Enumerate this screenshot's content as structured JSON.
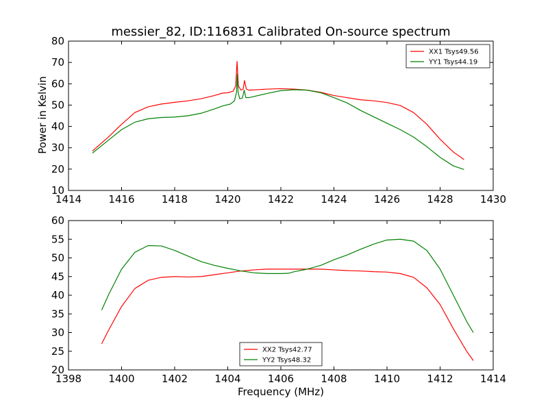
{
  "figure": {
    "title": "messier_82, ID:116831 Calibrated On-source spectrum",
    "ylabel": "Power in Kelvin",
    "xlabel": "Frequency (MHz)"
  },
  "chart_data": [
    {
      "type": "line",
      "title": "messier_82, ID:116831 Calibrated On-source spectrum",
      "xlabel": "",
      "ylabel": "Power in Kelvin",
      "xlim": [
        1414,
        1430
      ],
      "ylim": [
        10,
        80
      ],
      "xticks": [
        "1414",
        "1416",
        "1418",
        "1420",
        "1422",
        "1424",
        "1426",
        "1428",
        "1430"
      ],
      "yticks": [
        "10",
        "20",
        "30",
        "40",
        "50",
        "60",
        "70",
        "80"
      ],
      "grid": false,
      "legend_position": "top-right",
      "series": [
        {
          "name": "XX1 Tsys49.56",
          "color": "#ff0000",
          "points": [
            [
              1414.9,
              28.5
            ],
            [
              1415.5,
              35
            ],
            [
              1416,
              41
            ],
            [
              1416.5,
              46.5
            ],
            [
              1417,
              49.2
            ],
            [
              1417.5,
              50.5
            ],
            [
              1418,
              51.3
            ],
            [
              1418.5,
              52
            ],
            [
              1419,
              53
            ],
            [
              1419.5,
              54.5
            ],
            [
              1419.8,
              55.6
            ],
            [
              1420.0,
              55.8
            ],
            [
              1420.2,
              56.5
            ],
            [
              1420.3,
              59
            ],
            [
              1420.35,
              70.5
            ],
            [
              1420.4,
              59
            ],
            [
              1420.5,
              57
            ],
            [
              1420.58,
              57.5
            ],
            [
              1420.63,
              61.5
            ],
            [
              1420.7,
              57.5
            ],
            [
              1420.8,
              57
            ],
            [
              1421.5,
              57.5
            ],
            [
              1422,
              57.7
            ],
            [
              1422.5,
              57.5
            ],
            [
              1423,
              57
            ],
            [
              1423.5,
              56
            ],
            [
              1424,
              54.5
            ],
            [
              1424.5,
              53.5
            ],
            [
              1425,
              52.5
            ],
            [
              1425.5,
              52
            ],
            [
              1426,
              51.2
            ],
            [
              1426.5,
              49.8
            ],
            [
              1427,
              46.5
            ],
            [
              1427.5,
              41
            ],
            [
              1428,
              34
            ],
            [
              1428.5,
              28
            ],
            [
              1428.9,
              24.5
            ]
          ]
        },
        {
          "name": "YY1 Tsys44.19",
          "color": "#008000",
          "points": [
            [
              1414.9,
              27.5
            ],
            [
              1415.5,
              33.5
            ],
            [
              1416,
              38.5
            ],
            [
              1416.5,
              42
            ],
            [
              1417,
              43.6
            ],
            [
              1417.5,
              44.2
            ],
            [
              1418,
              44.4
            ],
            [
              1418.5,
              45
            ],
            [
              1419,
              46.2
            ],
            [
              1419.5,
              48.2
            ],
            [
              1419.8,
              49.6
            ],
            [
              1420.1,
              50.5
            ],
            [
              1420.25,
              52
            ],
            [
              1420.33,
              56
            ],
            [
              1420.36,
              64.5
            ],
            [
              1420.39,
              56
            ],
            [
              1420.45,
              53
            ],
            [
              1420.55,
              53.3
            ],
            [
              1420.62,
              57
            ],
            [
              1420.68,
              53.5
            ],
            [
              1420.8,
              53.5
            ],
            [
              1421.5,
              55.5
            ],
            [
              1422,
              56.8
            ],
            [
              1422.5,
              57.2
            ],
            [
              1423,
              57
            ],
            [
              1423.5,
              55.8
            ],
            [
              1424,
              53.5
            ],
            [
              1424.5,
              51
            ],
            [
              1425,
              47.5
            ],
            [
              1425.5,
              44.5
            ],
            [
              1426,
              41.5
            ],
            [
              1426.5,
              38.5
            ],
            [
              1427,
              35
            ],
            [
              1427.5,
              30.5
            ],
            [
              1428,
              25.5
            ],
            [
              1428.5,
              21.5
            ],
            [
              1428.9,
              19.8
            ]
          ]
        }
      ]
    },
    {
      "type": "line",
      "title": "",
      "xlabel": "Frequency (MHz)",
      "ylabel": "",
      "xlim": [
        1398,
        1414
      ],
      "ylim": [
        20,
        60
      ],
      "xticks": [
        "1398",
        "1400",
        "1402",
        "1404",
        "1406",
        "1408",
        "1410",
        "1412",
        "1414"
      ],
      "yticks": [
        "20",
        "25",
        "30",
        "35",
        "40",
        "45",
        "50",
        "55",
        "60"
      ],
      "grid": false,
      "legend_position": "bottom-center",
      "series": [
        {
          "name": "XX2 Tsys42.77",
          "color": "#ff0000",
          "points": [
            [
              1399.25,
              27
            ],
            [
              1399.5,
              30.5
            ],
            [
              1400,
              37
            ],
            [
              1400.5,
              41.8
            ],
            [
              1401,
              44
            ],
            [
              1401.5,
              44.8
            ],
            [
              1402,
              45
            ],
            [
              1402.5,
              44.9
            ],
            [
              1403,
              45
            ],
            [
              1403.5,
              45.5
            ],
            [
              1404,
              46
            ],
            [
              1404.5,
              46.5
            ],
            [
              1405,
              46.8
            ],
            [
              1405.5,
              47
            ],
            [
              1406,
              47
            ],
            [
              1406.5,
              47
            ],
            [
              1407,
              47
            ],
            [
              1407.5,
              47
            ],
            [
              1408,
              46.8
            ],
            [
              1408.5,
              46.6
            ],
            [
              1409,
              46.5
            ],
            [
              1409.5,
              46.3
            ],
            [
              1410,
              46.2
            ],
            [
              1410.5,
              45.8
            ],
            [
              1411,
              44.8
            ],
            [
              1411.5,
              42
            ],
            [
              1412,
              37.5
            ],
            [
              1412.5,
              31
            ],
            [
              1413,
              25
            ],
            [
              1413.25,
              22.5
            ]
          ]
        },
        {
          "name": "YY2 Tsys48.32",
          "color": "#008000",
          "points": [
            [
              1399.25,
              36
            ],
            [
              1399.5,
              40
            ],
            [
              1400,
              47
            ],
            [
              1400.5,
              51.5
            ],
            [
              1401,
              53.3
            ],
            [
              1401.5,
              53.2
            ],
            [
              1402,
              52
            ],
            [
              1402.5,
              50.5
            ],
            [
              1403,
              49
            ],
            [
              1403.5,
              48
            ],
            [
              1404,
              47.2
            ],
            [
              1404.5,
              46.5
            ],
            [
              1405,
              46
            ],
            [
              1405.5,
              45.8
            ],
            [
              1406,
              45.8
            ],
            [
              1406.3,
              45.9
            ],
            [
              1406.5,
              46.3
            ],
            [
              1407,
              47
            ],
            [
              1407.5,
              48
            ],
            [
              1408,
              49.5
            ],
            [
              1408.5,
              50.8
            ],
            [
              1409,
              52.3
            ],
            [
              1409.5,
              53.7
            ],
            [
              1410,
              54.8
            ],
            [
              1410.5,
              55
            ],
            [
              1411,
              54.5
            ],
            [
              1411.5,
              52
            ],
            [
              1412,
              47
            ],
            [
              1412.5,
              40
            ],
            [
              1413,
              33
            ],
            [
              1413.25,
              30
            ]
          ]
        }
      ]
    }
  ]
}
